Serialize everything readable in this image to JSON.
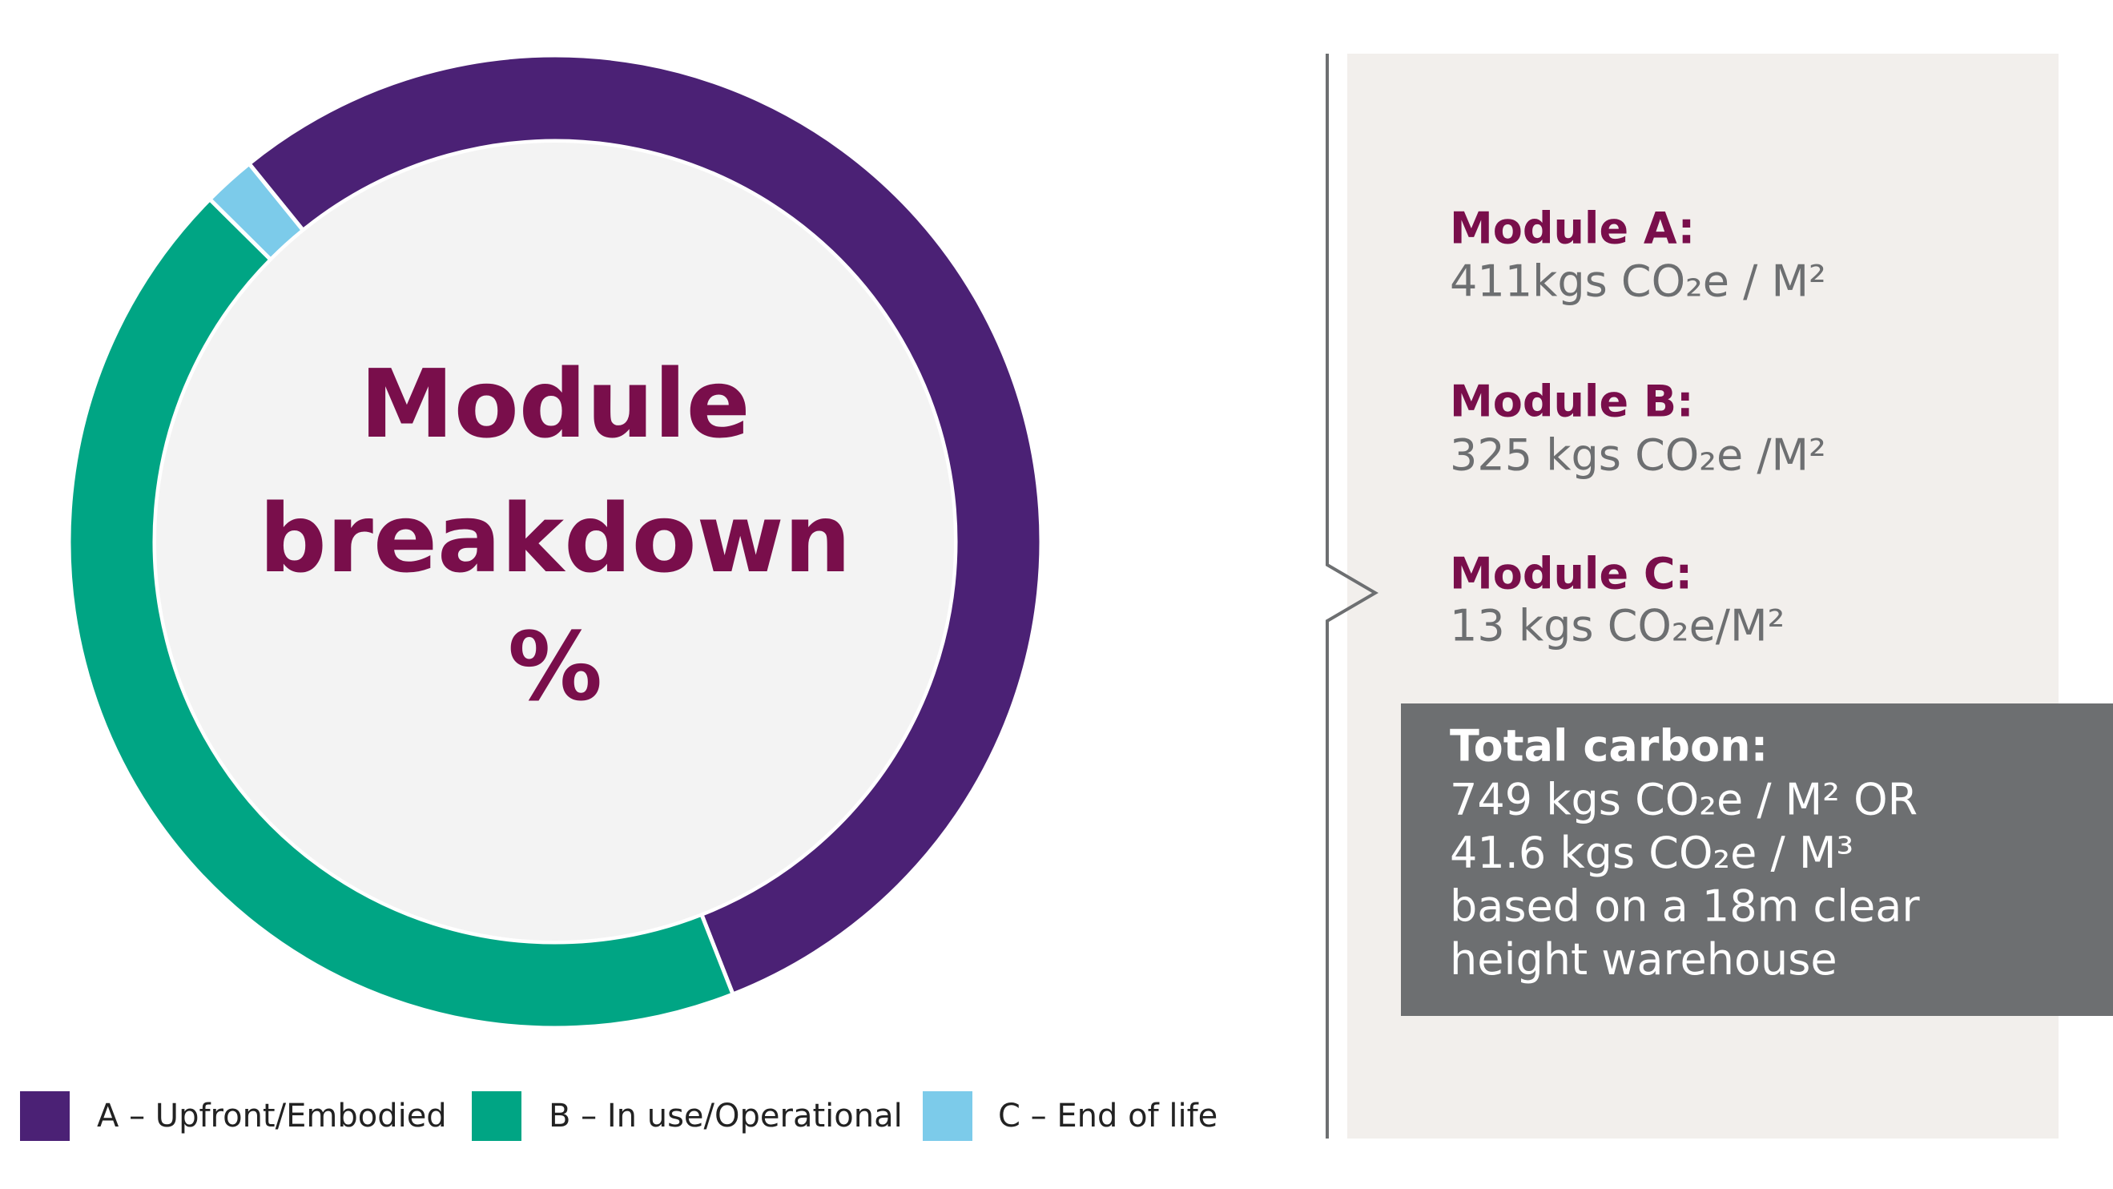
{
  "chart_data": {
    "type": "donut",
    "center_text": [
      "Module",
      "breakdown",
      "%"
    ],
    "categories": [
      "A – Upfront/Embodied",
      "B – In use/Operational",
      "C – End of life"
    ],
    "values": [
      411,
      325,
      13
    ],
    "colors": [
      "#4b2175",
      "#00a584",
      "#7ccbea"
    ]
  },
  "panel": {
    "modules": [
      {
        "label": "Module A:",
        "value": "411kgs CO₂e / M²"
      },
      {
        "label": "Module B:",
        "value": "325 kgs CO₂e /M²"
      },
      {
        "label": "Module C:",
        "value": "13 kgs CO₂e/M²"
      }
    ],
    "total": {
      "label": "Total carbon:",
      "lines": [
        "749 kgs CO₂e / M²  OR",
        "41.6 kgs CO₂e / M³",
        "based on a 18m clear",
        "height warehouse"
      ]
    }
  }
}
